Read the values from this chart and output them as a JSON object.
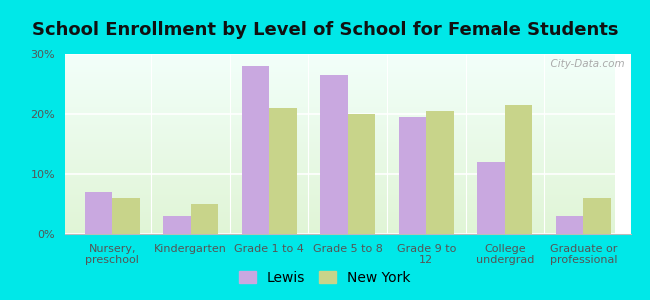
{
  "title": "School Enrollment by Level of School for Female Students",
  "categories": [
    "Nursery,\npreschool",
    "Kindergarten",
    "Grade 1 to 4",
    "Grade 5 to 8",
    "Grade 9 to\n12",
    "College\nundergrad",
    "Graduate or\nprofessional"
  ],
  "lewis": [
    7.0,
    3.0,
    28.0,
    26.5,
    19.5,
    12.0,
    3.0
  ],
  "new_york": [
    6.0,
    5.0,
    21.0,
    20.0,
    20.5,
    21.5,
    6.0
  ],
  "lewis_color": "#c9a8e0",
  "ny_color": "#c8d48a",
  "background_color": "#00e8e8",
  "ylim": [
    0,
    30
  ],
  "yticks": [
    0,
    10,
    20,
    30
  ],
  "ytick_labels": [
    "0%",
    "10%",
    "20%",
    "30%"
  ],
  "bar_width": 0.35,
  "legend_labels": [
    "Lewis",
    "New York"
  ],
  "watermark": "  City-Data.com",
  "title_fontsize": 13,
  "tick_fontsize": 8,
  "legend_fontsize": 10
}
